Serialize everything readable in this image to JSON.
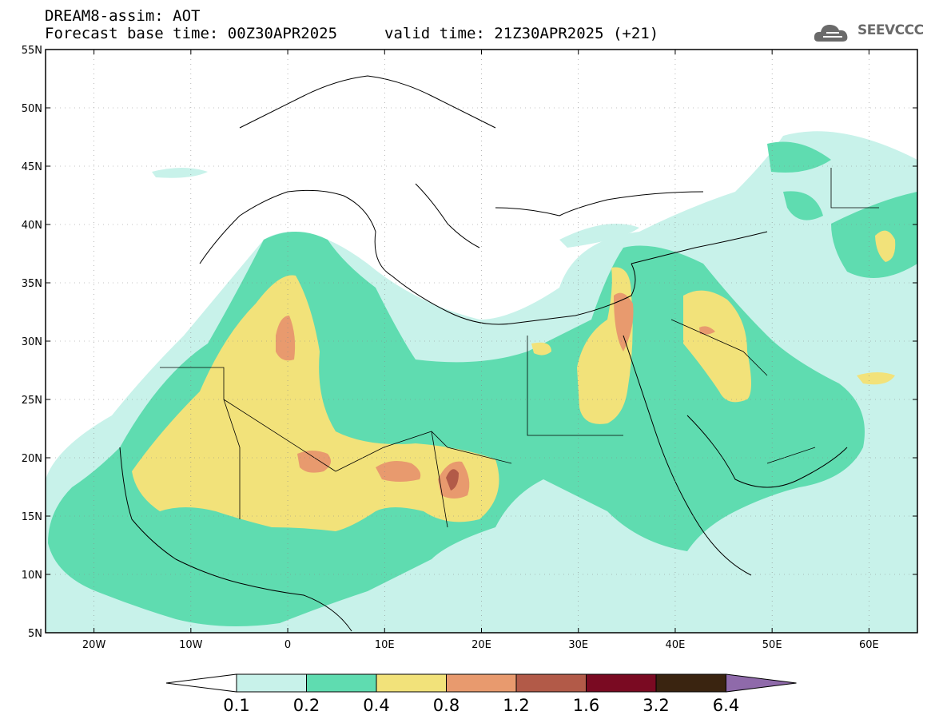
{
  "title": {
    "line1": "DREAM8-assim: AOT",
    "base_time": "Forecast base time: 00Z30APR2025",
    "valid_time": "valid time: 21Z30APR2025 (+21)"
  },
  "logo": {
    "text": "SEEVCCC",
    "icon": "cloud-icon"
  },
  "map": {
    "lon_range": [
      -25,
      65
    ],
    "lat_range": [
      5,
      55
    ],
    "lat_ticks": [
      "5N",
      "10N",
      "15N",
      "20N",
      "25N",
      "30N",
      "35N",
      "40N",
      "45N",
      "50N",
      "55N"
    ],
    "lon_ticks": [
      "20W",
      "10W",
      "0",
      "10E",
      "20E",
      "30E",
      "40E",
      "50E",
      "60E"
    ],
    "gridlines": true
  },
  "legend": {
    "levels": [
      "0.1",
      "0.2",
      "0.4",
      "0.8",
      "1.2",
      "1.6",
      "3.2",
      "6.4"
    ],
    "colors": {
      "below": "#ffffff",
      "c1": "#c8f2ea",
      "c2": "#5fdcb0",
      "c3": "#f2e27a",
      "c4": "#e89a6e",
      "c5": "#b25a48",
      "c6": "#7a0a22",
      "c7": "#3a2410",
      "above": "#8f6aaa"
    }
  }
}
